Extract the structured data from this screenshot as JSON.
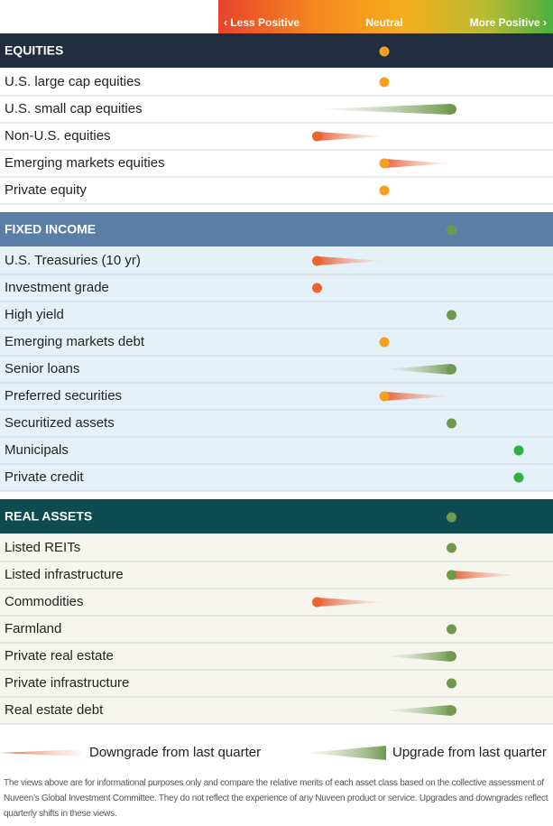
{
  "header": {
    "less": "‹  Less Positive",
    "neutral": "Neutral",
    "more": "More Positive  ›"
  },
  "chart_data": {
    "type": "dot-scale",
    "xlim": [
      -2,
      2
    ],
    "level_colors": {
      "-1": "#e8662c",
      "0": "#f5a01f",
      "1": "#6f9a4e",
      "2": "#2fae44"
    },
    "sections": [
      {
        "name": "EQUITIES",
        "value": 0,
        "header_color": "#1f2d3e",
        "row_color": "#ffffff",
        "rows": [
          {
            "label": "U.S. large cap equities",
            "value": 0
          },
          {
            "label": "U.S. small cap equities",
            "value": 1,
            "previous": -1
          },
          {
            "label": "Non-U.S. equities",
            "value": -1,
            "previous": 0
          },
          {
            "label": "Emerging markets equities",
            "value": 0,
            "previous": 1
          },
          {
            "label": "Private equity",
            "value": 0
          }
        ]
      },
      {
        "name": "FIXED INCOME",
        "value": 1,
        "header_color": "#5a7ea6",
        "row_color": "#e5f1f8",
        "rows": [
          {
            "label": "U.S. Treasuries (10 yr)",
            "value": -1,
            "previous": 0
          },
          {
            "label": "Investment grade",
            "value": -1
          },
          {
            "label": "High yield",
            "value": 1
          },
          {
            "label": "Emerging markets debt",
            "value": 0
          },
          {
            "label": "Senior loans",
            "value": 1,
            "previous": 0
          },
          {
            "label": "Preferred securities",
            "value": 0,
            "previous": 1
          },
          {
            "label": "Securitized assets",
            "value": 1
          },
          {
            "label": "Municipals",
            "value": 2
          },
          {
            "label": "Private credit",
            "value": 2
          }
        ]
      },
      {
        "name": "REAL ASSETS",
        "value": 1,
        "header_color": "#0e4b50",
        "row_color": "#f6f6ee",
        "rows": [
          {
            "label": "Listed REITs",
            "value": 1
          },
          {
            "label": "Listed infrastructure",
            "value": 1,
            "previous": 2
          },
          {
            "label": "Commodities",
            "value": -1,
            "previous": 0
          },
          {
            "label": "Farmland",
            "value": 1
          },
          {
            "label": "Private real estate",
            "value": 1,
            "previous": 0
          },
          {
            "label": "Private infrastructure",
            "value": 1
          },
          {
            "label": "Real estate debt",
            "value": 1,
            "previous": 0
          }
        ]
      }
    ]
  },
  "legend": {
    "downgrade": "Downgrade from last quarter",
    "upgrade": "Upgrade from last quarter"
  },
  "footnote": "The views above are for informational purposes only and compare the relative merits of each asset class based on the collective assessment of Nuveen’s Global Investment Committee. They do not reflect the experience of any Nuveen product or service. Upgrades and downgrades reflect quarterly shifts in these views."
}
